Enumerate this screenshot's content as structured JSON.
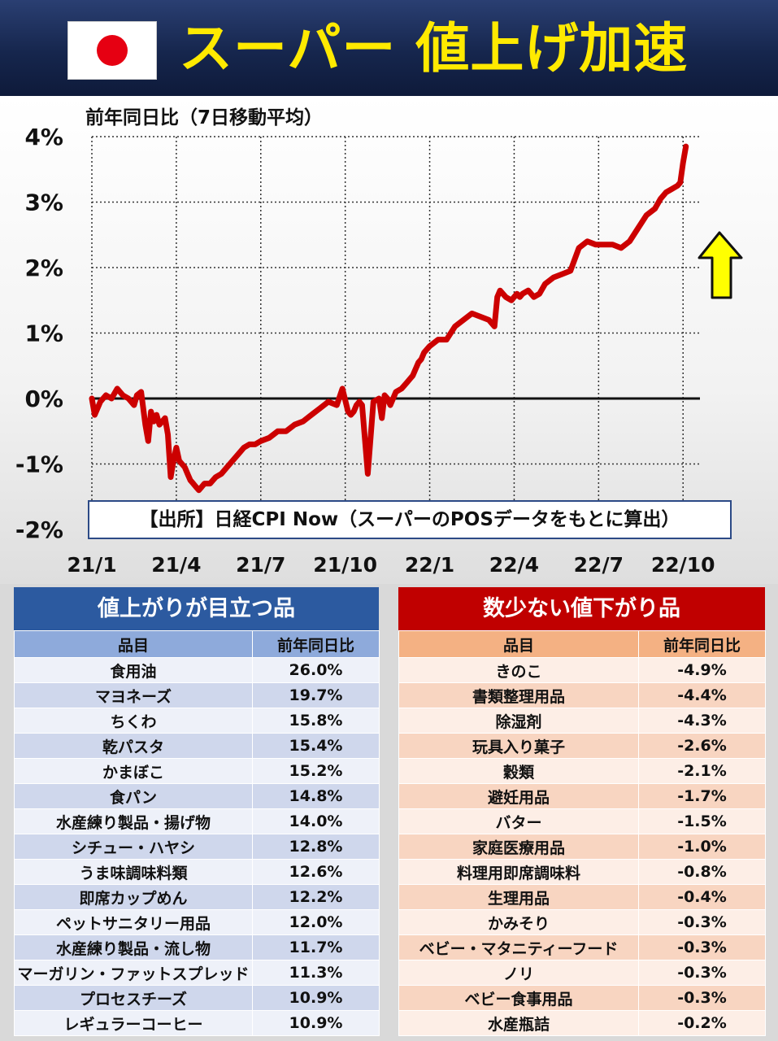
{
  "header": {
    "title": "スーパー 値上げ加速"
  },
  "chart_data": {
    "type": "line",
    "y_title": "前年同日比（7日移動平均）",
    "yticks": [
      "4%",
      "3%",
      "2%",
      "1%",
      "0%",
      "-1%",
      "-2%"
    ],
    "ylim": [
      -2,
      4
    ],
    "xticks": [
      "21/1",
      "21/4",
      "21/7",
      "21/10",
      "22/1",
      "22/4",
      "22/7",
      "22/10"
    ],
    "x_unit": "month index from 21/1",
    "xlim": [
      0,
      21.6
    ],
    "line_color": "#cc0000",
    "annotation": "up-arrow",
    "series": [
      {
        "x": [
          0,
          0.1,
          0.3,
          0.5,
          0.7,
          0.9,
          1.1,
          1.3,
          1.5,
          1.6,
          1.75,
          1.9,
          2.0,
          2.1,
          2.2,
          2.3,
          2.4,
          2.5,
          2.6,
          2.7,
          2.8,
          2.9,
          3.0,
          3.1,
          3.2,
          3.3,
          3.4,
          3.5,
          3.6,
          3.7,
          3.8,
          3.9,
          4.0,
          4.2,
          4.4,
          4.6,
          4.8,
          5.0,
          5.2,
          5.4,
          5.6,
          5.8,
          6.0,
          6.3,
          6.6,
          6.9,
          7.2,
          7.5,
          7.8,
          8.1,
          8.4,
          8.7,
          8.9,
          9.1,
          9.2,
          9.3,
          9.4,
          9.5,
          9.6,
          9.8,
          10.0,
          10.2,
          10.3,
          10.4,
          10.5,
          10.6,
          10.8,
          11.0,
          11.2,
          11.3,
          11.4,
          11.5,
          11.6,
          11.7,
          11.8,
          12.0,
          12.3,
          12.6,
          12.9,
          13.2,
          13.5,
          13.8,
          14.1,
          14.3,
          14.4,
          14.5,
          14.7,
          14.9,
          15.1,
          15.2,
          15.3,
          15.5,
          15.7,
          15.9,
          16.1,
          16.4,
          16.7,
          17.0,
          17.3,
          17.6,
          17.9,
          18.2,
          18.5,
          18.8,
          19.1,
          19.4,
          19.7,
          20.0,
          20.2,
          20.4,
          20.6,
          20.8,
          20.9,
          21.0,
          21.1
        ],
        "y": [
          0.0,
          -0.25,
          -0.05,
          0.05,
          0.0,
          0.15,
          0.05,
          0.0,
          -0.1,
          0.05,
          0.1,
          -0.4,
          -0.65,
          -0.2,
          -0.35,
          -0.25,
          -0.4,
          -0.35,
          -0.3,
          -0.55,
          -1.2,
          -0.95,
          -0.75,
          -0.95,
          -1.0,
          -1.05,
          -1.15,
          -1.25,
          -1.3,
          -1.35,
          -1.4,
          -1.35,
          -1.3,
          -1.3,
          -1.2,
          -1.15,
          -1.05,
          -0.95,
          -0.85,
          -0.75,
          -0.7,
          -0.7,
          -0.65,
          -0.6,
          -0.5,
          -0.5,
          -0.4,
          -0.35,
          -0.25,
          -0.15,
          -0.05,
          -0.1,
          0.15,
          -0.2,
          -0.25,
          -0.2,
          -0.1,
          -0.05,
          -0.1,
          -1.15,
          -0.05,
          0.0,
          -0.3,
          0.05,
          0.0,
          -0.1,
          0.1,
          0.15,
          0.25,
          0.3,
          0.35,
          0.45,
          0.55,
          0.6,
          0.7,
          0.8,
          0.9,
          0.9,
          1.1,
          1.2,
          1.3,
          1.25,
          1.2,
          1.1,
          1.55,
          1.65,
          1.55,
          1.5,
          1.6,
          1.55,
          1.6,
          1.65,
          1.55,
          1.6,
          1.75,
          1.85,
          1.9,
          1.95,
          2.3,
          2.4,
          2.35,
          2.35,
          2.35,
          2.3,
          2.4,
          2.6,
          2.8,
          2.9,
          3.05,
          3.15,
          3.2,
          3.25,
          3.3,
          3.6,
          3.85
        ]
      }
    ]
  },
  "source": "【出所】日経CPI Now（スーパーのPOSデータをもとに算出）",
  "left_table": {
    "title": "値上がりが目立つ品",
    "col_item": "品目",
    "col_value": "前年同日比",
    "rows": [
      [
        "食用油",
        "26.0%"
      ],
      [
        "マヨネーズ",
        "19.7%"
      ],
      [
        "ちくわ",
        "15.8%"
      ],
      [
        "乾パスタ",
        "15.4%"
      ],
      [
        "かまぼこ",
        "15.2%"
      ],
      [
        "食パン",
        "14.8%"
      ],
      [
        "水産練り製品・揚げ物",
        "14.0%"
      ],
      [
        "シチュー・ハヤシ",
        "12.8%"
      ],
      [
        "うま味調味料類",
        "12.6%"
      ],
      [
        "即席カップめん",
        "12.2%"
      ],
      [
        "ペットサニタリー用品",
        "12.0%"
      ],
      [
        "水産練り製品・流し物",
        "11.7%"
      ],
      [
        "マーガリン・ファットスプレッド",
        "11.3%"
      ],
      [
        "プロセスチーズ",
        "10.9%"
      ],
      [
        "レギュラーコーヒー",
        "10.9%"
      ]
    ]
  },
  "right_table": {
    "title": "数少ない値下がり品",
    "col_item": "品目",
    "col_value": "前年同日比",
    "rows": [
      [
        "きのこ",
        "-4.9%"
      ],
      [
        "書類整理用品",
        "-4.4%"
      ],
      [
        "除湿剤",
        "-4.3%"
      ],
      [
        "玩具入り菓子",
        "-2.6%"
      ],
      [
        "穀類",
        "-2.1%"
      ],
      [
        "避妊用品",
        "-1.7%"
      ],
      [
        "バター",
        "-1.5%"
      ],
      [
        "家庭医療用品",
        "-1.0%"
      ],
      [
        "料理用即席調味料",
        "-0.8%"
      ],
      [
        "生理用品",
        "-0.4%"
      ],
      [
        "かみそり",
        "-0.3%"
      ],
      [
        "ベビー・マタニティーフード",
        "-0.3%"
      ],
      [
        "ノリ",
        "-0.3%"
      ],
      [
        "ベビー食事用品",
        "-0.3%"
      ],
      [
        "水産瓶詰",
        "-0.2%"
      ]
    ]
  }
}
